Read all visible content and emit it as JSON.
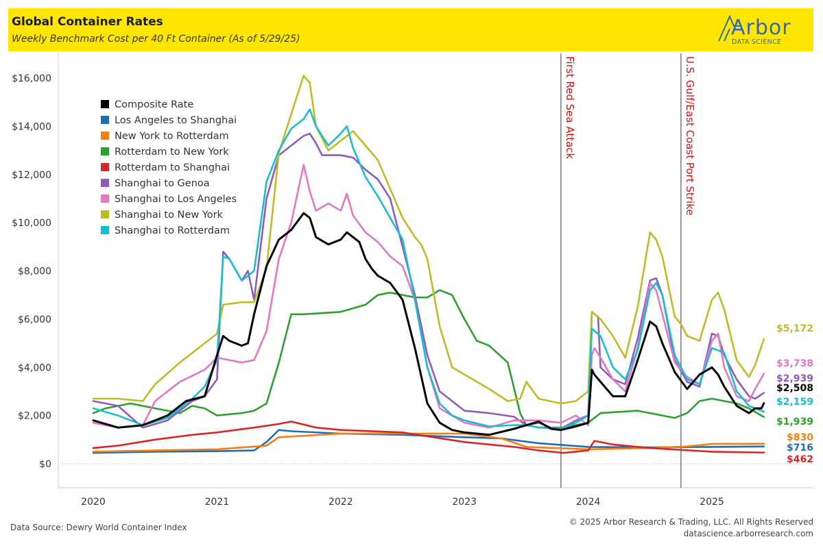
{
  "header": {
    "title": "Global Container Rates",
    "subtitle": "Weekly Benchmark Cost per 40 Ft Container (As of 5/29/25)",
    "logo_text": "Arbor",
    "logo_sub": "DATA SCIENCE"
  },
  "footer": {
    "source": "Data Source: Dewry World Container Index",
    "copyright": "© 2025 Arbor Research & Trading, LLC. All Rights Reserved",
    "website": "datascience.arborresearch.com"
  },
  "colors": {
    "header_bg": "#ffe600",
    "annotation": "#cc1111"
  },
  "chart_data": {
    "type": "line",
    "x_ticks": [
      "2020",
      "2021",
      "2022",
      "2023",
      "2024",
      "2025"
    ],
    "x_range": [
      2020.0,
      2025.6
    ],
    "y_ticks": [
      "$0",
      "$2,000",
      "$4,000",
      "$6,000",
      "$8,000",
      "$10,000",
      "$12,000",
      "$14,000",
      "$16,000"
    ],
    "ylim": [
      0,
      16000
    ],
    "grid": false,
    "legend_position": "top-left",
    "annotations": [
      {
        "x": 2023.78,
        "label": "First Red Sea Attack"
      },
      {
        "x": 2024.75,
        "label": "U.S. Gulf/East Coast Port Strike"
      }
    ],
    "series": [
      {
        "name": "Composite Rate",
        "color": "#000000",
        "end_label": "$2,508",
        "x": [
          2020.0,
          2020.2,
          2020.4,
          2020.6,
          2020.75,
          2020.9,
          2021.0,
          2021.05,
          2021.1,
          2021.2,
          2021.25,
          2021.3,
          2021.4,
          2021.5,
          2021.6,
          2021.7,
          2021.75,
          2021.8,
          2021.9,
          2022.0,
          2022.05,
          2022.1,
          2022.15,
          2022.2,
          2022.25,
          2022.3,
          2022.4,
          2022.5,
          2022.6,
          2022.7,
          2022.8,
          2022.9,
          2023.0,
          2023.2,
          2023.4,
          2023.5,
          2023.6,
          2023.7,
          2023.78,
          2023.9,
          2024.0,
          2024.03,
          2024.05,
          2024.1,
          2024.2,
          2024.3,
          2024.4,
          2024.5,
          2024.55,
          2024.6,
          2024.7,
          2024.8,
          2024.9,
          2025.0,
          2025.05,
          2025.1,
          2025.2,
          2025.3,
          2025.35,
          2025.4,
          2025.42
        ],
        "y": [
          1800,
          1500,
          1600,
          2000,
          2600,
          2800,
          4500,
          5300,
          5100,
          4900,
          5000,
          6200,
          8200,
          9300,
          9700,
          10400,
          10200,
          9400,
          9100,
          9300,
          9600,
          9400,
          9200,
          8500,
          8100,
          7800,
          7500,
          6800,
          4800,
          2500,
          1700,
          1400,
          1300,
          1200,
          1450,
          1600,
          1750,
          1450,
          1400,
          1550,
          1700,
          3900,
          3700,
          3400,
          2800,
          2800,
          4300,
          5900,
          5700,
          5000,
          3800,
          3100,
          3700,
          4000,
          3700,
          3200,
          2400,
          2100,
          2300,
          2300,
          2508
        ]
      },
      {
        "name": "Los Angeles to Shanghai",
        "color": "#1f6eb5",
        "end_label": "$716",
        "x": [
          2020.0,
          2020.5,
          2021.0,
          2021.3,
          2021.4,
          2021.5,
          2021.6,
          2022.0,
          2022.5,
          2023.0,
          2023.3,
          2023.6,
          2024.0,
          2024.5,
          2025.0,
          2025.42
        ],
        "y": [
          450,
          500,
          520,
          550,
          900,
          1400,
          1350,
          1250,
          1200,
          1100,
          1050,
          850,
          700,
          680,
          700,
          716
        ]
      },
      {
        "name": "New York to Rotterdam",
        "color": "#f07f14",
        "end_label": "$830",
        "x": [
          2020.0,
          2020.5,
          2021.0,
          2021.4,
          2021.5,
          2022.0,
          2022.5,
          2023.0,
          2023.3,
          2023.5,
          2024.0,
          2024.5,
          2024.8,
          2025.0,
          2025.42
        ],
        "y": [
          500,
          550,
          600,
          750,
          1100,
          1250,
          1250,
          1250,
          1050,
          700,
          600,
          650,
          720,
          820,
          830
        ]
      },
      {
        "name": "Rotterdam to New York",
        "color": "#2ca02c",
        "end_label": "$1,939",
        "x": [
          2020.0,
          2020.1,
          2020.3,
          2020.5,
          2020.7,
          2020.8,
          2020.9,
          2021.0,
          2021.2,
          2021.3,
          2021.4,
          2021.5,
          2021.6,
          2021.7,
          2022.0,
          2022.2,
          2022.3,
          2022.4,
          2022.5,
          2022.6,
          2022.7,
          2022.8,
          2022.9,
          2023.0,
          2023.1,
          2023.2,
          2023.35,
          2023.45,
          2023.5,
          2023.6,
          2023.78,
          2023.9,
          2024.0,
          2024.1,
          2024.4,
          2024.5,
          2024.6,
          2024.7,
          2024.75,
          2024.8,
          2024.9,
          2025.0,
          2025.1,
          2025.2,
          2025.3,
          2025.42
        ],
        "y": [
          2100,
          2300,
          2500,
          2300,
          2100,
          2400,
          2300,
          2000,
          2100,
          2200,
          2500,
          4200,
          6200,
          6200,
          6300,
          6600,
          7000,
          7100,
          7000,
          6900,
          6900,
          7200,
          7000,
          6000,
          5100,
          4900,
          4200,
          2100,
          1600,
          1500,
          1500,
          1600,
          1700,
          2100,
          2200,
          2100,
          2000,
          1900,
          2000,
          2100,
          2600,
          2700,
          2600,
          2500,
          2300,
          1939
        ]
      },
      {
        "name": "Rotterdam to Shanghai",
        "color": "#d62728",
        "end_label": "$462",
        "x": [
          2020.0,
          2020.2,
          2020.5,
          2020.8,
          2021.0,
          2021.3,
          2021.5,
          2021.6,
          2021.8,
          2022.0,
          2022.5,
          2023.0,
          2023.4,
          2023.6,
          2023.8,
          2024.0,
          2024.05,
          2024.2,
          2024.5,
          2025.0,
          2025.42
        ],
        "y": [
          650,
          750,
          1000,
          1200,
          1300,
          1500,
          1650,
          1750,
          1500,
          1400,
          1300,
          900,
          700,
          550,
          450,
          550,
          950,
          800,
          650,
          500,
          462
        ]
      },
      {
        "name": "Shanghai to Genoa",
        "color": "#8e5bbd",
        "end_label": "$2,939",
        "x": [
          2020.0,
          2020.2,
          2020.4,
          2020.6,
          2020.8,
          2020.9,
          2021.0,
          2021.05,
          2021.1,
          2021.2,
          2021.25,
          2021.3,
          2021.4,
          2021.5,
          2021.6,
          2021.7,
          2021.75,
          2021.8,
          2021.85,
          2022.0,
          2022.1,
          2022.2,
          2022.3,
          2022.4,
          2022.5,
          2022.6,
          2022.7,
          2022.8,
          2022.9,
          2023.0,
          2023.2,
          2023.4,
          2023.5,
          2023.6,
          2023.7,
          2023.78,
          2023.9,
          2024.0,
          2024.03,
          2024.08,
          2024.1,
          2024.2,
          2024.3,
          2024.4,
          2024.5,
          2024.55,
          2024.6,
          2024.7,
          2024.8,
          2024.9,
          2025.0,
          2025.05,
          2025.1,
          2025.2,
          2025.3,
          2025.35,
          2025.42
        ],
        "y": [
          2600,
          2400,
          1500,
          1800,
          2600,
          2800,
          3500,
          8800,
          8500,
          7600,
          8000,
          6800,
          11000,
          12800,
          13200,
          13600,
          13700,
          13300,
          12800,
          12800,
          12700,
          12200,
          11800,
          11000,
          9000,
          7000,
          4500,
          3000,
          2600,
          2200,
          2100,
          1950,
          1600,
          1700,
          1500,
          1450,
          1800,
          2000,
          6300,
          6100,
          4000,
          3500,
          3300,
          5200,
          7600,
          7700,
          7000,
          4300,
          3400,
          3200,
          5400,
          5300,
          4500,
          3500,
          2800,
          2700,
          2939
        ]
      },
      {
        "name": "Shanghai to Los Angeles",
        "color": "#e377c2",
        "end_label": "$3,738",
        "x": [
          2020.0,
          2020.2,
          2020.4,
          2020.5,
          2020.7,
          2020.9,
          2021.0,
          2021.2,
          2021.3,
          2021.4,
          2021.5,
          2021.6,
          2021.7,
          2021.75,
          2021.8,
          2021.9,
          2022.0,
          2022.05,
          2022.1,
          2022.2,
          2022.3,
          2022.4,
          2022.5,
          2022.6,
          2022.7,
          2022.8,
          2023.0,
          2023.2,
          2023.4,
          2023.6,
          2023.78,
          2023.9,
          2024.0,
          2024.03,
          2024.05,
          2024.1,
          2024.2,
          2024.3,
          2024.4,
          2024.5,
          2024.55,
          2024.6,
          2024.7,
          2024.8,
          2024.9,
          2025.0,
          2025.05,
          2025.1,
          2025.2,
          2025.3,
          2025.35,
          2025.42
        ],
        "y": [
          1700,
          1500,
          1600,
          2600,
          3400,
          3900,
          4400,
          4200,
          4300,
          5500,
          8500,
          10000,
          12400,
          11300,
          10500,
          10800,
          10500,
          11200,
          10300,
          9600,
          9200,
          8600,
          8200,
          6800,
          4000,
          2300,
          1700,
          1500,
          1800,
          1800,
          1700,
          2000,
          1600,
          4500,
          4800,
          4400,
          3500,
          3000,
          4800,
          7500,
          7200,
          6200,
          4200,
          3600,
          3300,
          5100,
          5400,
          4000,
          2800,
          2600,
          3100,
          3738
        ]
      },
      {
        "name": "Shanghai to New York",
        "color": "#bcbd22",
        "end_label": "$5,172",
        "x": [
          2020.0,
          2020.2,
          2020.4,
          2020.5,
          2020.7,
          2020.9,
          2021.0,
          2021.05,
          2021.2,
          2021.3,
          2021.4,
          2021.5,
          2021.6,
          2021.7,
          2021.75,
          2021.8,
          2021.9,
          2022.0,
          2022.1,
          2022.2,
          2022.3,
          2022.4,
          2022.5,
          2022.6,
          2022.65,
          2022.7,
          2022.8,
          2022.9,
          2023.0,
          2023.2,
          2023.35,
          2023.45,
          2023.5,
          2023.6,
          2023.78,
          2023.9,
          2024.0,
          2024.03,
          2024.1,
          2024.2,
          2024.3,
          2024.4,
          2024.5,
          2024.55,
          2024.6,
          2024.7,
          2024.75,
          2024.8,
          2024.9,
          2025.0,
          2025.05,
          2025.1,
          2025.2,
          2025.3,
          2025.35,
          2025.42
        ],
        "y": [
          2700,
          2700,
          2600,
          3300,
          4200,
          5000,
          5400,
          6600,
          6700,
          6700,
          8100,
          12900,
          14500,
          16100,
          15800,
          14000,
          13000,
          13400,
          13800,
          13200,
          12600,
          11400,
          10200,
          9400,
          9100,
          8500,
          5700,
          4000,
          3700,
          3100,
          2600,
          2700,
          3400,
          2700,
          2500,
          2600,
          3000,
          6300,
          6000,
          5300,
          4400,
          6500,
          9600,
          9300,
          8600,
          6100,
          5800,
          5300,
          5100,
          6800,
          7100,
          6400,
          4300,
          3600,
          4100,
          5172
        ]
      },
      {
        "name": "Shanghai to Rotterdam",
        "color": "#17becf",
        "end_label": "$2,159",
        "x": [
          2020.0,
          2020.2,
          2020.4,
          2020.6,
          2020.8,
          2020.9,
          2021.0,
          2021.05,
          2021.1,
          2021.2,
          2021.3,
          2021.4,
          2021.5,
          2021.6,
          2021.7,
          2021.75,
          2021.8,
          2021.9,
          2022.0,
          2022.05,
          2022.1,
          2022.2,
          2022.3,
          2022.4,
          2022.5,
          2022.6,
          2022.7,
          2022.8,
          2022.9,
          2023.0,
          2023.2,
          2023.4,
          2023.5,
          2023.6,
          2023.78,
          2023.9,
          2024.0,
          2024.03,
          2024.1,
          2024.2,
          2024.3,
          2024.4,
          2024.5,
          2024.55,
          2024.6,
          2024.7,
          2024.8,
          2024.9,
          2025.0,
          2025.1,
          2025.2,
          2025.3,
          2025.42
        ],
        "y": [
          2300,
          2000,
          1600,
          1900,
          2700,
          3200,
          4300,
          8600,
          8500,
          7600,
          8000,
          11700,
          13000,
          13900,
          14300,
          14700,
          14000,
          13200,
          13700,
          14000,
          13100,
          11900,
          11100,
          10200,
          9300,
          6800,
          4000,
          2500,
          2000,
          1800,
          1550,
          1600,
          1600,
          1500,
          1450,
          1700,
          2000,
          5600,
          5300,
          4000,
          3500,
          4700,
          7200,
          7500,
          7000,
          4500,
          3500,
          3300,
          4800,
          4600,
          3000,
          2400,
          2159
        ]
      }
    ]
  }
}
